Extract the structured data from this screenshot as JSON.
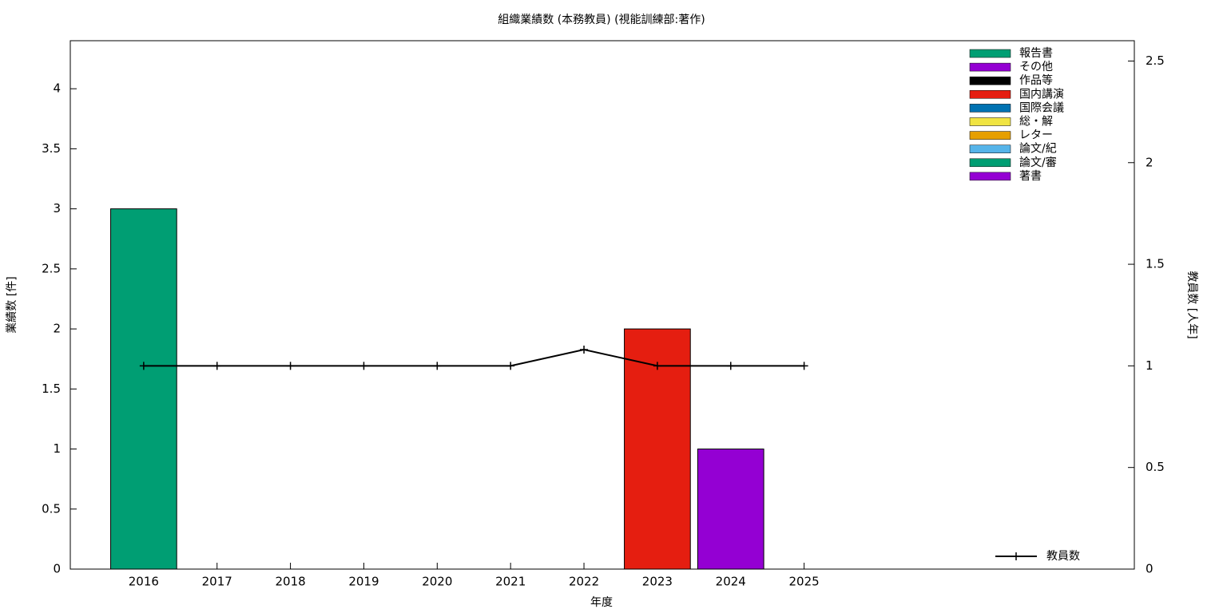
{
  "chart_data": {
    "type": "bar",
    "stacked": true,
    "title": "組織業績数 (本務教員) (視能訓練部:著作)",
    "xlabel": "年度",
    "ylabel": "業績数 [件]",
    "y2label": "教員数 [人年]",
    "categories": [
      "2016",
      "2017",
      "2018",
      "2019",
      "2020",
      "2021",
      "2022",
      "2023",
      "2024",
      "2025"
    ],
    "ylim": [
      0,
      4.4
    ],
    "yticks": [
      0,
      0.5,
      1,
      1.5,
      2,
      2.5,
      3,
      3.5,
      4
    ],
    "y2lim": [
      0,
      2.6
    ],
    "y2ticks": [
      0,
      0.5,
      1,
      1.5,
      2,
      2.5
    ],
    "legend": "top-right",
    "series": [
      {
        "name": "報告書",
        "color": "#009e73",
        "values": [
          0,
          0,
          0,
          0,
          0,
          0,
          0,
          0,
          0,
          0
        ]
      },
      {
        "name": "その他",
        "color": "#9400d3",
        "values": [
          0,
          0,
          0,
          0,
          0,
          0,
          0,
          0,
          0,
          0
        ]
      },
      {
        "name": "作品等",
        "color": "#000000",
        "values": [
          0,
          0,
          0,
          0,
          0,
          0,
          0,
          0,
          0,
          0
        ]
      },
      {
        "name": "国内講演",
        "color": "#e51e10",
        "values": [
          0,
          0,
          0,
          0,
          0,
          0,
          0,
          2,
          0,
          0
        ]
      },
      {
        "name": "国際会議",
        "color": "#0072b2",
        "values": [
          0,
          0,
          0,
          0,
          0,
          0,
          0,
          0,
          0,
          0
        ]
      },
      {
        "name": "総・解",
        "color": "#f0e442",
        "values": [
          0,
          0,
          0,
          0,
          0,
          0,
          0,
          0,
          0,
          0
        ]
      },
      {
        "name": "レター",
        "color": "#e69f00",
        "values": [
          0,
          0,
          0,
          0,
          0,
          0,
          0,
          0,
          0,
          0
        ]
      },
      {
        "name": "論文/紀",
        "color": "#56b4e9",
        "values": [
          0,
          0,
          0,
          0,
          0,
          0,
          0,
          0,
          0,
          0
        ]
      },
      {
        "name": "論文/審",
        "color": "#009e73",
        "values": [
          3,
          0,
          0,
          0,
          0,
          0,
          0,
          0,
          0,
          0
        ]
      },
      {
        "name": "著書",
        "color": "#9400d3",
        "values": [
          0,
          0,
          0,
          0,
          0,
          0,
          0,
          0,
          1,
          0
        ]
      },
      {
        "name": "教員数",
        "color": "#000000",
        "type": "line",
        "axis": "y2",
        "values": [
          1,
          1,
          1,
          1,
          1,
          1,
          1.08,
          1,
          1,
          1
        ]
      }
    ]
  }
}
